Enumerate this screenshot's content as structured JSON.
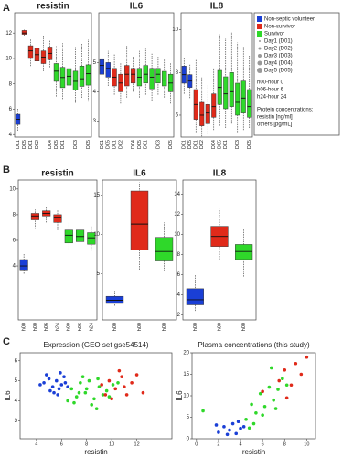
{
  "panel_labels": [
    "A",
    "B",
    "C"
  ],
  "legend": {
    "groups": [
      {
        "label": "Non-septic volunteer",
        "color": "#1a3fd6"
      },
      {
        "label": "Non-survivor",
        "color": "#e02a1a"
      },
      {
        "label": "Survivor",
        "color": "#2fd82a"
      }
    ],
    "days": [
      "Day1 (D01)",
      "Day2 (D02)",
      "Day3 (D03)",
      "Day4 (D04)",
      "Day5 (D05)"
    ],
    "hours": [
      "h00-hour 0",
      "h06-hour 6",
      "h24-hour 24"
    ],
    "notes": [
      "Protein concentrations:",
      "resistin [ng/ml]",
      "others [pg/mL]"
    ]
  },
  "chart_data": [
    {
      "type": "box",
      "title": "resistin",
      "ylim": [
        3.8,
        13.6
      ],
      "yticks": [
        4,
        6,
        8,
        10,
        12
      ],
      "categories": [
        "D01",
        "D05",
        "D01",
        "D02",
        null,
        "D04",
        "D05",
        "D01",
        null,
        "D03",
        null,
        "D05"
      ],
      "colors": [
        "#1a3fd6",
        "#e02a1a",
        "#e02a1a",
        "#e02a1a",
        "#e02a1a",
        "#e02a1a",
        "#2fd82a",
        "#2fd82a",
        "#2fd82a",
        "#2fd82a",
        "#2fd82a",
        "#2fd82a"
      ],
      "values": [
        [
          4.3,
          4.8,
          5.2,
          5.6,
          6.1
        ],
        [
          11.8,
          11.9,
          12.0,
          12.2,
          12.3
        ],
        [
          9.4,
          10.0,
          10.6,
          11.0,
          11.5
        ],
        [
          9.2,
          9.8,
          10.3,
          10.8,
          11.6
        ],
        [
          9.0,
          9.6,
          10.1,
          10.6,
          11.8
        ],
        [
          9.3,
          9.9,
          10.4,
          10.9,
          11.4
        ],
        [
          7.0,
          8.2,
          9.0,
          9.6,
          11.0
        ],
        [
          6.8,
          7.7,
          8.5,
          9.3,
          11.2
        ],
        [
          7.2,
          7.9,
          8.6,
          9.2,
          10.8
        ],
        [
          6.5,
          7.5,
          8.2,
          9.0,
          10.9
        ],
        [
          6.9,
          7.8,
          8.4,
          9.4,
          11.2
        ],
        [
          6.6,
          7.9,
          8.8,
          9.5,
          11.5
        ]
      ]
    },
    {
      "type": "box",
      "title": "IL6",
      "ylim": [
        2.45,
        6.7
      ],
      "yticks": [
        3,
        4,
        5
      ],
      "categories": [
        "D01",
        "D05",
        "D01",
        "D02",
        null,
        "D04",
        "D05",
        "D01",
        null,
        "D03",
        null,
        "D05"
      ],
      "colors": [
        "#1a3fd6",
        "#1a3fd6",
        "#e02a1a",
        "#e02a1a",
        "#e02a1a",
        "#e02a1a",
        "#2fd82a",
        "#2fd82a",
        "#2fd82a",
        "#2fd82a",
        "#2fd82a",
        "#2fd82a"
      ],
      "values": [
        [
          4.3,
          4.6,
          4.9,
          5.1,
          5.5
        ],
        [
          4.2,
          4.5,
          4.8,
          5.0,
          5.4
        ],
        [
          3.9,
          4.2,
          4.5,
          4.8,
          5.3
        ],
        [
          3.6,
          4.0,
          4.3,
          4.6,
          5.0
        ],
        [
          3.8,
          4.2,
          4.6,
          4.9,
          5.6
        ],
        [
          4.0,
          4.3,
          4.6,
          4.8,
          5.2
        ],
        [
          3.8,
          4.2,
          4.5,
          4.8,
          5.4
        ],
        [
          3.9,
          4.3,
          4.6,
          4.9,
          5.5
        ],
        [
          3.7,
          4.1,
          4.5,
          4.8,
          5.3
        ],
        [
          3.9,
          4.3,
          4.6,
          4.8,
          5.2
        ],
        [
          3.8,
          4.2,
          4.4,
          4.7,
          5.1
        ],
        [
          3.6,
          4.0,
          4.3,
          4.6,
          5.0
        ]
      ]
    },
    {
      "type": "box",
      "title": "IL8",
      "ylim": [
        4.97,
        10.8
      ],
      "yticks": [
        6,
        8,
        10
      ],
      "categories": [
        "D01",
        "D05",
        "D01",
        "D02",
        null,
        "D04",
        "D05",
        "D01",
        null,
        "D03",
        null,
        "D05"
      ],
      "colors": [
        "#1a3fd6",
        "#1a3fd6",
        "#e02a1a",
        "#e02a1a",
        "#e02a1a",
        "#e02a1a",
        "#2fd82a",
        "#2fd82a",
        "#2fd82a",
        "#2fd82a",
        "#2fd82a",
        "#2fd82a"
      ],
      "values": [
        [
          7.0,
          7.5,
          7.9,
          8.3,
          8.7
        ],
        [
          6.8,
          7.3,
          7.6,
          7.9,
          8.4
        ],
        [
          5.2,
          5.8,
          6.5,
          7.2,
          8.6
        ],
        [
          5.0,
          5.5,
          6.0,
          6.6,
          7.8
        ],
        [
          5.1,
          5.6,
          6.1,
          6.5,
          7.4
        ],
        [
          5.3,
          5.9,
          6.4,
          7.0,
          8.2
        ],
        [
          5.5,
          6.5,
          7.3,
          8.1,
          9.8
        ],
        [
          5.4,
          6.3,
          7.0,
          7.8,
          9.6
        ],
        [
          5.6,
          6.4,
          7.1,
          8.0,
          9.9
        ],
        [
          5.2,
          6.0,
          6.6,
          7.5,
          9.4
        ],
        [
          5.3,
          6.1,
          6.8,
          7.6,
          9.2
        ],
        [
          5.4,
          5.9,
          6.4,
          7.2,
          8.8
        ]
      ]
    },
    {
      "type": "box",
      "title": "resistin",
      "ylim": [
        -0.2,
        10.7
      ],
      "yticks": [
        4,
        6,
        8,
        10
      ],
      "categories": [
        "h00",
        "h00",
        "h06",
        "h24",
        "h00",
        "h06",
        "h24"
      ],
      "colors": [
        "#1a3fd6",
        "#e02a1a",
        "#e02a1a",
        "#e02a1a",
        "#2fd82a",
        "#2fd82a",
        "#2fd82a"
      ],
      "values": [
        [
          3.4,
          3.7,
          4.0,
          4.5,
          5.0
        ],
        [
          6.9,
          7.6,
          7.9,
          8.1,
          8.4
        ],
        [
          7.4,
          7.9,
          8.1,
          8.3,
          8.6
        ],
        [
          6.8,
          7.4,
          7.8,
          8.0,
          8.4
        ],
        [
          5.3,
          5.8,
          6.4,
          6.8,
          7.4
        ],
        [
          5.5,
          5.9,
          6.3,
          6.8,
          7.3
        ],
        [
          5.2,
          5.7,
          6.2,
          6.6,
          7.1
        ]
      ]
    },
    {
      "type": "box",
      "title": "IL6",
      "ylim": [
        -0.9,
        16.9
      ],
      "yticks": [
        5,
        10,
        15
      ],
      "categories": [
        "h00",
        "h00",
        "h00"
      ],
      "colors": [
        "#1a3fd6",
        "#e02a1a",
        "#2fd82a"
      ],
      "values": [
        [
          0.9,
          1.2,
          1.6,
          2.1,
          2.8
        ],
        [
          5.5,
          8.0,
          11.3,
          15.5,
          16.6
        ],
        [
          5.3,
          6.6,
          7.8,
          9.6,
          11.5
        ]
      ]
    },
    {
      "type": "box",
      "title": "IL8",
      "ylim": [
        1.5,
        15.4
      ],
      "yticks": [
        2,
        4,
        6,
        8,
        10,
        12,
        14
      ],
      "categories": [
        "h00",
        "h00",
        "h00"
      ],
      "colors": [
        "#1a3fd6",
        "#e02a1a",
        "#2fd82a"
      ],
      "values": [
        [
          2.4,
          3.0,
          3.5,
          4.6,
          6.0
        ],
        [
          7.5,
          8.8,
          9.8,
          10.8,
          12.5
        ],
        [
          5.8,
          7.5,
          8.3,
          9.0,
          10.5
        ]
      ]
    },
    {
      "type": "scatter",
      "title": "Expression (GEO set gse54514)",
      "x_label": "resistin",
      "y_label": "IL6",
      "xlim": [
        2.7,
        14.8
      ],
      "xticks": [
        4,
        6,
        8,
        10,
        12
      ],
      "ylim": [
        2.1,
        6.4
      ],
      "yticks": [
        3,
        4,
        5,
        6
      ],
      "series": [
        {
          "color": "#1a3fd6",
          "x": [
            4.6,
            5.0,
            5.3,
            5.6,
            5.8,
            6.0,
            6.2,
            5.4,
            5.1,
            4.8,
            6.5,
            5.7,
            5.9,
            6.3,
            4.3
          ],
          "y": [
            4.9,
            5.1,
            4.7,
            5.0,
            4.6,
            4.8,
            5.2,
            4.4,
            4.5,
            5.3,
            4.7,
            4.3,
            5.4,
            4.9,
            4.8
          ]
        },
        {
          "color": "#2fd82a",
          "x": [
            6.8,
            7.2,
            7.5,
            7.9,
            8.2,
            8.6,
            9.0,
            9.3,
            7.0,
            7.7,
            8.4,
            8.9,
            9.6,
            10.1,
            6.5,
            8.0,
            8.8,
            9.8,
            7.4,
            10.5
          ],
          "y": [
            4.6,
            4.2,
            4.9,
            4.4,
            5.0,
            4.1,
            4.7,
            4.3,
            3.9,
            5.2,
            3.8,
            5.1,
            4.5,
            4.8,
            4.0,
            4.6,
            3.6,
            4.2,
            4.4,
            4.9
          ]
        },
        {
          "color": "#e02a1a",
          "x": [
            9.2,
            9.8,
            10.3,
            10.8,
            11.2,
            11.6,
            12.0,
            10.0,
            11.0,
            12.5,
            10.6,
            9.5
          ],
          "y": [
            4.8,
            5.0,
            4.6,
            5.2,
            4.3,
            4.9,
            5.3,
            4.1,
            4.7,
            4.4,
            5.5,
            4.3
          ]
        }
      ]
    },
    {
      "type": "scatter",
      "title": "Plasma concentrations (this study)",
      "x_label": "resistin",
      "y_label": "IL6",
      "xlim": [
        -0.4,
        10.8
      ],
      "xticks": [
        0,
        2,
        4,
        6,
        8,
        10
      ],
      "ylim": [
        0,
        20
      ],
      "yticks": [
        0,
        5,
        10,
        15,
        20
      ],
      "series": [
        {
          "color": "#1a3fd6",
          "x": [
            2.0,
            2.5,
            3.0,
            3.3,
            3.6,
            4.0,
            2.8,
            3.8,
            4.3,
            1.8
          ],
          "y": [
            1.5,
            2.8,
            2.0,
            3.5,
            1.2,
            2.4,
            1.0,
            4.0,
            2.8,
            3.2
          ]
        },
        {
          "color": "#2fd82a",
          "x": [
            0.6,
            4.5,
            5.0,
            5.4,
            5.8,
            6.2,
            6.6,
            7.0,
            7.4,
            7.8,
            5.2,
            6.0,
            6.8,
            4.8,
            8.2,
            7.2
          ],
          "y": [
            6.5,
            4.5,
            8.0,
            6.0,
            10.5,
            7.5,
            12.0,
            9.0,
            11.5,
            14.0,
            3.5,
            5.5,
            16.5,
            2.5,
            12.5,
            7.0
          ]
        },
        {
          "color": "#e02a1a",
          "x": [
            6.0,
            7.5,
            8.0,
            8.6,
            9.0,
            9.5,
            10.0,
            8.2
          ],
          "y": [
            11.0,
            13.5,
            16.0,
            12.5,
            17.5,
            15.0,
            19.0,
            9.5
          ]
        }
      ]
    }
  ]
}
